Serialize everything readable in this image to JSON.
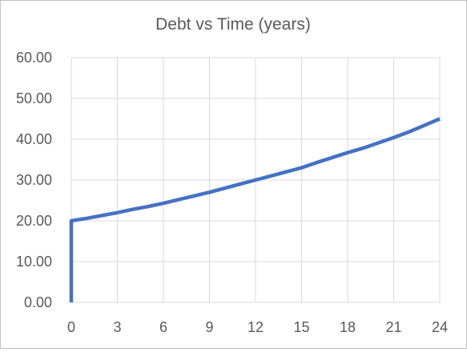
{
  "chart_data": {
    "type": "line",
    "title": "Debt vs Time (years)",
    "xlabel": "",
    "ylabel": "",
    "xlim": [
      0,
      24
    ],
    "ylim": [
      0,
      60
    ],
    "x_ticks": [
      "0",
      "3",
      "6",
      "9",
      "12",
      "15",
      "18",
      "21",
      "24"
    ],
    "y_ticks": [
      "0.00",
      "10.00",
      "20.00",
      "30.00",
      "40.00",
      "50.00",
      "60.00"
    ],
    "grid": true,
    "legend": "none",
    "series_color": "#4472c4",
    "series": [
      {
        "x": [
          0,
          0,
          1,
          2,
          3,
          4,
          5,
          6,
          7,
          8,
          9,
          10,
          11,
          12,
          13,
          14,
          15,
          16,
          17,
          18,
          19,
          20,
          21,
          22,
          23,
          24
        ],
        "values": [
          0,
          20.0,
          20.6,
          21.3,
          22.0,
          22.8,
          23.5,
          24.3,
          25.2,
          26.1,
          27.0,
          28.0,
          29.0,
          30.0,
          31.0,
          32.0,
          33.0,
          34.3,
          35.5,
          36.7,
          37.8,
          39.1,
          40.4,
          41.8,
          43.4,
          45.0
        ]
      }
    ]
  }
}
